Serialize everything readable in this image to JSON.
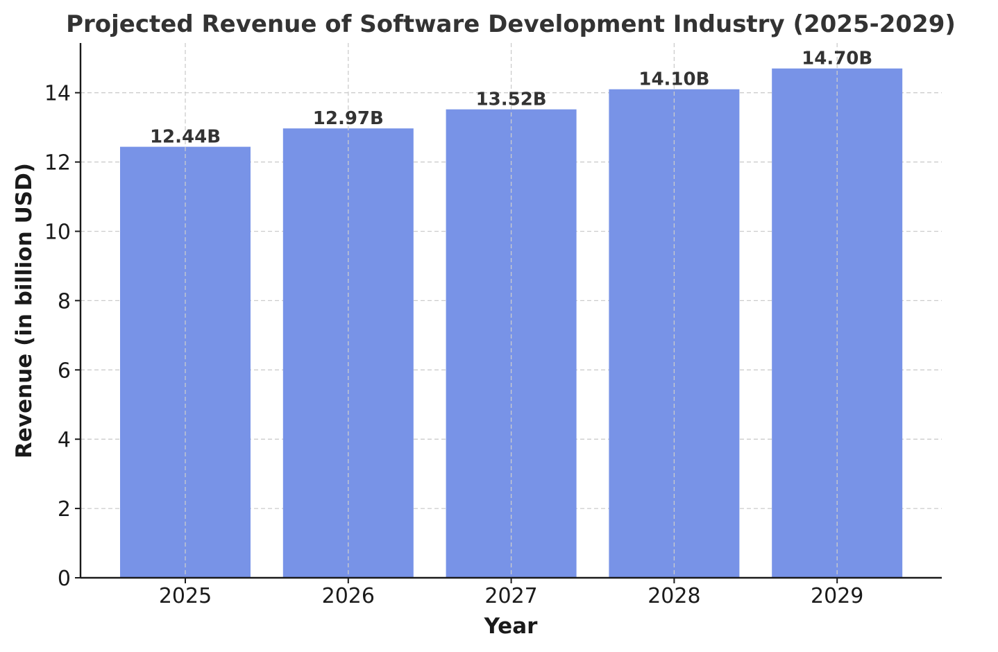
{
  "chart_data": {
    "type": "bar",
    "title": "Projected Revenue of Software Development Industry (2025-2029)",
    "xlabel": "Year",
    "ylabel": "Revenue (in billion USD)",
    "categories": [
      "2025",
      "2026",
      "2027",
      "2028",
      "2029"
    ],
    "values": [
      12.44,
      12.97,
      13.52,
      14.1,
      14.7
    ],
    "data_labels": [
      "12.44B",
      "12.97B",
      "13.52B",
      "14.10B",
      "14.70B"
    ],
    "ylim": [
      0,
      15.435
    ],
    "yticks": [
      0,
      2,
      4,
      6,
      8,
      10,
      12,
      14
    ],
    "grid": true,
    "bar_color": "#7893e7"
  }
}
